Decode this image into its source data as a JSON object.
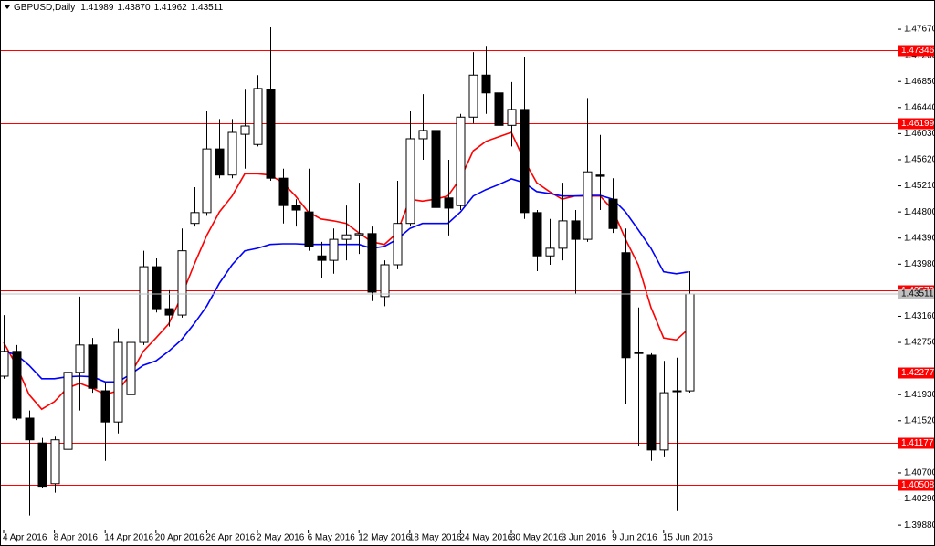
{
  "chart_data": {
    "type": "candlestick",
    "title": "GBPUSD,Daily",
    "ohlc_labels": [
      "1.41989",
      "1.43870",
      "1.41962",
      "1.43511"
    ],
    "categories": [
      "4 Apr 2016",
      null,
      null,
      null,
      "8 Apr 2016",
      null,
      null,
      null,
      "14 Apr 2016",
      null,
      null,
      null,
      "20 Apr 2016",
      null,
      null,
      null,
      "26 Apr 2016",
      null,
      null,
      null,
      "2 May 2016",
      null,
      null,
      null,
      "6 May 2016",
      null,
      null,
      null,
      "12 May 2016",
      null,
      null,
      null,
      "18 May 2016",
      null,
      null,
      null,
      "24 May 2016",
      null,
      null,
      null,
      "30 May 2016",
      null,
      null,
      null,
      "3 Jun 2016",
      null,
      null,
      null,
      "9 Jun 2016",
      null,
      null,
      null,
      "15 Jun 2016",
      null,
      null
    ],
    "open": [
      1.4222,
      1.4261,
      1.4156,
      1.4117,
      1.4053,
      1.4107,
      1.4228,
      1.4271,
      1.4199,
      1.415,
      1.4193,
      1.4275,
      1.4394,
      1.4328,
      1.4318,
      1.4462,
      1.4479,
      1.4579,
      1.4538,
      1.4602,
      1.4586,
      1.4672,
      1.4533,
      1.449,
      1.448,
      1.4411,
      1.4404,
      1.4437,
      1.4444,
      1.4446,
      1.4347,
      1.4397,
      1.4462,
      1.4595,
      1.4608,
      1.4502,
      1.449,
      1.4629,
      1.4695,
      1.4667,
      1.4616,
      1.4641,
      1.4479,
      1.4411,
      1.4423,
      1.4466,
      1.4437,
      1.4538,
      1.45,
      1.4416,
      1.4259,
      1.4255,
      1.4106,
      1.4199,
      1.41989
    ],
    "high": [
      1.4318,
      1.4271,
      1.4168,
      1.4125,
      1.4127,
      1.4285,
      1.4347,
      1.4282,
      1.4211,
      1.4297,
      1.4285,
      1.4419,
      1.4407,
      1.4357,
      1.4454,
      1.4519,
      1.4638,
      1.4626,
      1.4626,
      1.4672,
      1.4695,
      1.477,
      1.4548,
      1.45,
      1.4548,
      1.4433,
      1.4454,
      1.449,
      1.4526,
      1.4457,
      1.4404,
      1.4529,
      1.4638,
      1.4665,
      1.4612,
      1.4562,
      1.4634,
      1.4731,
      1.4741,
      1.4684,
      1.4684,
      1.4724,
      1.4483,
      1.4469,
      1.4526,
      1.4483,
      1.4659,
      1.4601,
      1.4533,
      1.4454,
      1.433,
      1.4258,
      1.4246,
      1.4251,
      1.4387
    ],
    "low": [
      1.4218,
      1.4153,
      1.4003,
      1.4046,
      1.4039,
      1.4104,
      1.4168,
      1.4196,
      1.4089,
      1.4132,
      1.4132,
      1.4271,
      1.4322,
      1.43,
      1.4314,
      1.4457,
      1.4474,
      1.4533,
      1.4533,
      1.4548,
      1.4583,
      1.4529,
      1.4462,
      1.4457,
      1.4419,
      1.4376,
      1.4383,
      1.4404,
      1.4414,
      1.434,
      1.4332,
      1.439,
      1.4457,
      1.4562,
      1.4462,
      1.4443,
      1.4483,
      1.4619,
      1.4634,
      1.4605,
      1.4583,
      1.4469,
      1.4387,
      1.4397,
      1.4404,
      1.4351,
      1.4433,
      1.4483,
      1.4447,
      1.4179,
      1.4113,
      1.4089,
      1.4096,
      1.401,
      1.41962
    ],
    "close": [
      1.4261,
      1.4156,
      1.4122,
      1.4049,
      1.4122,
      1.4228,
      1.4271,
      1.4203,
      1.415,
      1.4275,
      1.4275,
      1.4394,
      1.4328,
      1.4318,
      1.4419,
      1.4479,
      1.4579,
      1.4538,
      1.4605,
      1.4615,
      1.4674,
      1.4533,
      1.449,
      1.4483,
      1.4426,
      1.4404,
      1.4437,
      1.4444,
      1.4446,
      1.4354,
      1.4397,
      1.4462,
      1.4595,
      1.4608,
      1.4487,
      1.4486,
      1.4629,
      1.4695,
      1.4667,
      1.4616,
      1.4641,
      1.4479,
      1.4411,
      1.4423,
      1.4466,
      1.4437,
      1.4543,
      1.4536,
      1.4454,
      1.4251,
      1.4258,
      1.4106,
      1.4196,
      1.4198,
      1.43511
    ],
    "up_color": "#ffffff",
    "down_color": "#000000",
    "series": [
      {
        "color": "#ff0000",
        "values": [
          1.4275,
          1.4239,
          1.4193,
          1.417,
          1.4182,
          1.4203,
          1.4211,
          1.4203,
          1.4193,
          1.4199,
          1.4225,
          1.4261,
          1.4282,
          1.4304,
          1.4347,
          1.4397,
          1.4443,
          1.448,
          1.4505,
          1.454,
          1.454,
          1.4538,
          1.4526,
          1.4505,
          1.448,
          1.4469,
          1.4466,
          1.4462,
          1.4447,
          1.4433,
          1.4429,
          1.4447,
          1.45,
          1.4497,
          1.45,
          1.4505,
          1.4533,
          1.4576,
          1.4591,
          1.4598,
          1.4605,
          1.4562,
          1.4526,
          1.4512,
          1.45,
          1.4505,
          1.4505,
          1.4505,
          1.4483,
          1.4437,
          1.4397,
          1.433,
          1.4282,
          1.4279,
          1.4297
        ]
      },
      {
        "color": "#0000ff",
        "values": [
          1.4261,
          1.4256,
          1.4239,
          1.4218,
          1.4218,
          1.4221,
          1.4222,
          1.4221,
          1.4213,
          1.4213,
          1.4225,
          1.4239,
          1.4246,
          1.4261,
          1.4279,
          1.4304,
          1.4332,
          1.4368,
          1.4397,
          1.4419,
          1.4423,
          1.4429,
          1.443,
          1.443,
          1.4429,
          1.4429,
          1.4429,
          1.4429,
          1.4429,
          1.4423,
          1.4426,
          1.4437,
          1.4454,
          1.4462,
          1.4462,
          1.4462,
          1.448,
          1.4505,
          1.4515,
          1.4523,
          1.4532,
          1.4526,
          1.4512,
          1.4509,
          1.4505,
          1.4505,
          1.4506,
          1.4506,
          1.45,
          1.448,
          1.4452,
          1.4423,
          1.4386,
          1.4383,
          1.4386
        ]
      }
    ],
    "levels": [
      1.47346,
      1.46199,
      1.43573,
      1.42277,
      1.41177,
      1.40508
    ],
    "level_color": "#ff0000",
    "ylim": [
      1.3981,
      1.4813
    ],
    "yticks": [
      {
        "value": 1.4767,
        "label": "1.47670"
      },
      {
        "value": 1.4726,
        "label": "1.47260"
      },
      {
        "value": 1.4685,
        "label": "1.46850"
      },
      {
        "value": 1.4644,
        "label": "1.46440"
      },
      {
        "value": 1.4603,
        "label": "1.46030"
      },
      {
        "value": 1.4562,
        "label": "1.45620"
      },
      {
        "value": 1.4521,
        "label": "1.45210"
      },
      {
        "value": 1.448,
        "label": "1.44800"
      },
      {
        "value": 1.4439,
        "label": "1.44390"
      },
      {
        "value": 1.4398,
        "label": "1.43980"
      },
      {
        "value": 1.4316,
        "label": "1.43160"
      },
      {
        "value": 1.4275,
        "label": "1.42750"
      },
      {
        "value": 1.4193,
        "label": "1.41930"
      },
      {
        "value": 1.4152,
        "label": "1.41520"
      },
      {
        "value": 1.407,
        "label": "1.40700"
      },
      {
        "value": 1.4029,
        "label": "1.40290"
      },
      {
        "value": 1.3988,
        "label": "1.39880"
      }
    ],
    "grid": false
  }
}
